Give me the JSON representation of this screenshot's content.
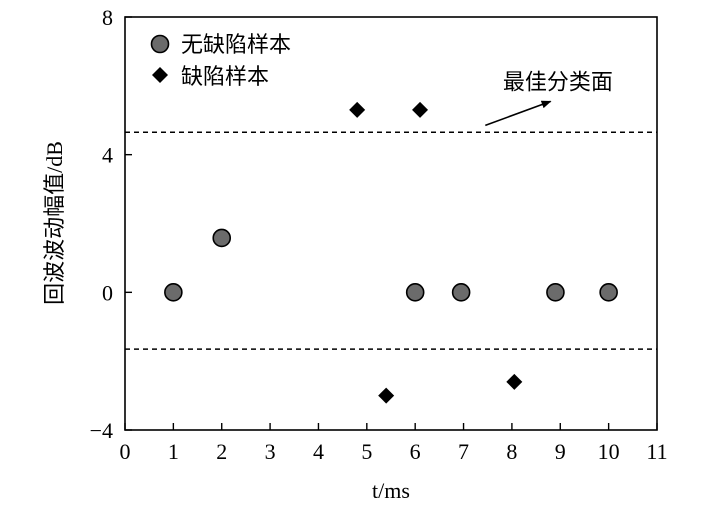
{
  "chart_data": {
    "type": "scatter",
    "title": "",
    "xlabel": "t/ms",
    "ylabel": "回波波动幅值/dB",
    "xlim": [
      0,
      11
    ],
    "ylim": [
      -4,
      8
    ],
    "x_ticks": [
      0,
      1,
      2,
      3,
      4,
      5,
      6,
      7,
      8,
      9,
      10,
      11
    ],
    "y_ticks": [
      -4,
      0,
      4,
      8
    ],
    "y_tick_labels": [
      "−4",
      "0",
      "4",
      "8"
    ],
    "grid": false,
    "legend_position": "top-left",
    "series": [
      {
        "name": "无缺陷样本",
        "marker": "circle",
        "color": "#6b6b6b",
        "x": [
          1,
          2,
          6,
          6.95,
          8.9,
          10
        ],
        "y": [
          0,
          1.58,
          0,
          0,
          0,
          0
        ]
      },
      {
        "name": "缺陷样本",
        "marker": "diamond",
        "color": "#000000",
        "x": [
          4.8,
          5.4,
          6.1,
          8.05
        ],
        "y": [
          5.3,
          -3.0,
          5.3,
          -2.6
        ]
      }
    ],
    "boundaries": [
      {
        "y": 4.65,
        "style": "dashed"
      },
      {
        "y": -1.65,
        "style": "dashed"
      }
    ],
    "annotation": {
      "text": "最佳分类面",
      "arrow_from": [
        7.45,
        4.85
      ],
      "arrow_to": [
        8.8,
        5.55
      ]
    }
  }
}
